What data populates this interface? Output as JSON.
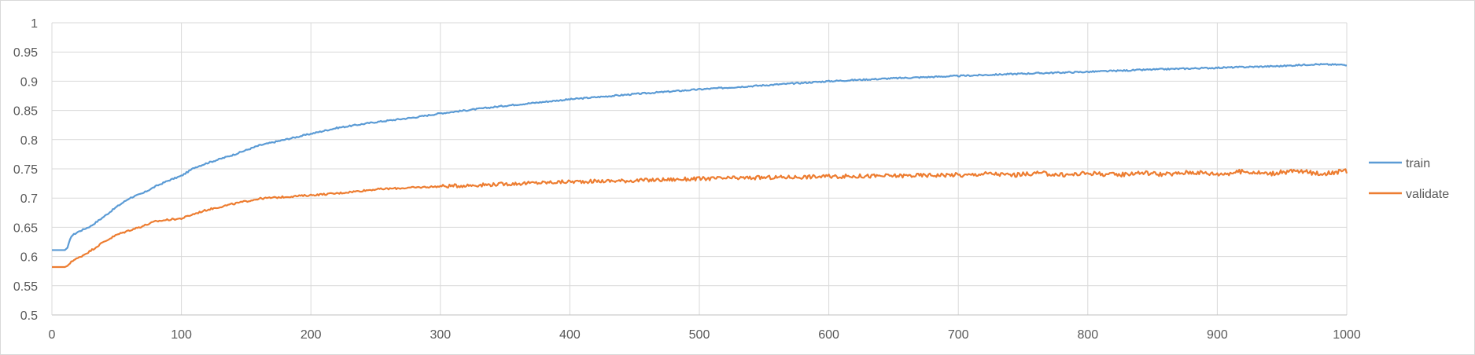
{
  "chart_data": {
    "type": "line",
    "title": "",
    "xlabel": "",
    "ylabel": "",
    "xlim": [
      0,
      1000
    ],
    "ylim": [
      0.5,
      1
    ],
    "grid": true,
    "legend_position": "right",
    "x_ticks": [
      0,
      100,
      200,
      300,
      400,
      500,
      600,
      700,
      800,
      900,
      1000
    ],
    "x_tick_labels": [
      "0",
      "100",
      "200",
      "300",
      "400",
      "500",
      "600",
      "700",
      "800",
      "900",
      "1000"
    ],
    "y_ticks": [
      0.5,
      0.55,
      0.6,
      0.65,
      0.7,
      0.75,
      0.8,
      0.85,
      0.9,
      0.95,
      1
    ],
    "y_tick_labels": [
      "0.5",
      "0.55",
      "0.6",
      "0.65",
      "0.7",
      "0.75",
      "0.8",
      "0.85",
      "0.9",
      "0.95",
      "1"
    ],
    "series": [
      {
        "name": "train",
        "color": "#5b9bd5",
        "x": [
          0,
          10,
          12,
          15,
          20,
          30,
          40,
          50,
          60,
          70,
          80,
          90,
          100,
          110,
          120,
          140,
          160,
          180,
          200,
          220,
          250,
          280,
          300,
          350,
          400,
          450,
          500,
          550,
          600,
          650,
          700,
          750,
          800,
          850,
          900,
          950,
          975,
          1000
        ],
        "y": [
          0.611,
          0.611,
          0.615,
          0.635,
          0.642,
          0.652,
          0.668,
          0.685,
          0.7,
          0.708,
          0.72,
          0.73,
          0.738,
          0.752,
          0.76,
          0.774,
          0.79,
          0.8,
          0.81,
          0.82,
          0.83,
          0.838,
          0.845,
          0.858,
          0.869,
          0.878,
          0.886,
          0.893,
          0.9,
          0.905,
          0.909,
          0.913,
          0.916,
          0.92,
          0.923,
          0.926,
          0.929,
          0.928
        ]
      },
      {
        "name": "validate",
        "color": "#ed7d31",
        "x": [
          0,
          10,
          13,
          15,
          20,
          30,
          40,
          50,
          60,
          70,
          80,
          90,
          100,
          110,
          120,
          140,
          160,
          180,
          200,
          220,
          250,
          280,
          300,
          350,
          400,
          450,
          500,
          550,
          600,
          650,
          700,
          750,
          800,
          850,
          900,
          950,
          1000
        ],
        "y": [
          0.582,
          0.582,
          0.585,
          0.592,
          0.597,
          0.61,
          0.625,
          0.637,
          0.645,
          0.652,
          0.66,
          0.663,
          0.665,
          0.673,
          0.68,
          0.69,
          0.699,
          0.702,
          0.705,
          0.708,
          0.715,
          0.718,
          0.72,
          0.724,
          0.728,
          0.73,
          0.733,
          0.735,
          0.737,
          0.738,
          0.74,
          0.741,
          0.741,
          0.742,
          0.743,
          0.744,
          0.744
        ]
      }
    ]
  }
}
